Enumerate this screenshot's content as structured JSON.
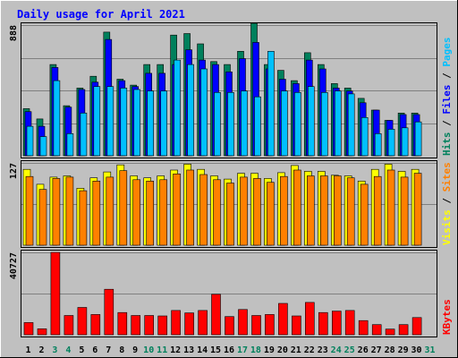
{
  "chart_data": {
    "type": "bar",
    "title": "Daily usage for April 2021",
    "categories": [
      "1",
      "2",
      "3",
      "4",
      "5",
      "6",
      "7",
      "8",
      "9",
      "10",
      "11",
      "12",
      "13",
      "14",
      "15",
      "16",
      "17",
      "18",
      "19",
      "20",
      "21",
      "22",
      "23",
      "24",
      "25",
      "26",
      "27",
      "28",
      "29",
      "30",
      "31"
    ],
    "weekend_days": [
      "3",
      "4",
      "10",
      "11",
      "17",
      "18",
      "24",
      "25",
      "31"
    ],
    "panels": [
      {
        "id": "hits",
        "max_label": "888",
        "ylim": [
          0,
          888
        ],
        "legend": [
          "Pages",
          "Files",
          "Hits"
        ],
        "series": [
          {
            "name": "Hits",
            "color": "#00805c",
            "values": [
              320,
              250,
              620,
              340,
              460,
              540,
              840,
              520,
              480,
              620,
              620,
              820,
              830,
              760,
              640,
              620,
              710,
              900,
              620,
              580,
              510,
              700,
              620,
              490,
              460,
              390,
              310,
              240,
              290,
              290,
              0
            ]
          },
          {
            "name": "Files",
            "color": "#0000ff",
            "values": [
              300,
              200,
              600,
              330,
              450,
              500,
              790,
              510,
              470,
              560,
              560,
              620,
              720,
              650,
              620,
              570,
              660,
              770,
              590,
              520,
              490,
              650,
              590,
              460,
              440,
              360,
              310,
              240,
              280,
              280,
              0
            ]
          },
          {
            "name": "Pages",
            "color": "#00c0ff",
            "values": [
              200,
              130,
              510,
              150,
              290,
              470,
              470,
              460,
              450,
              440,
              440,
              650,
              620,
              590,
              430,
              430,
              440,
              400,
              710,
              440,
              430,
              470,
              430,
              440,
              420,
              260,
              150,
              180,
              190,
              230,
              0
            ]
          }
        ]
      },
      {
        "id": "visits",
        "max_label": "127",
        "ylim": [
          0,
          127
        ],
        "legend": [
          "Sites",
          "Visits"
        ],
        "series": [
          {
            "name": "Visits",
            "color": "#ffff00",
            "values": [
              117,
              94,
              105,
              107,
              88,
              104,
              113,
              124,
              107,
              104,
              107,
              116,
              125,
              117,
              107,
              102,
              111,
              111,
              103,
              112,
              123,
              114,
              114,
              108,
              107,
              99,
              117,
              125,
              114,
              117,
              0
            ]
          },
          {
            "name": "Sites",
            "color": "#ff8000",
            "values": [
              106,
              86,
              103,
              105,
              84,
              99,
              105,
              115,
              101,
              99,
              101,
              110,
              116,
              109,
              101,
              96,
              105,
              103,
              97,
              106,
              116,
              107,
              107,
              107,
              104,
              94,
              106,
              116,
              105,
              111,
              0
            ]
          }
        ]
      },
      {
        "id": "kbytes",
        "max_label": "40727",
        "ylim": [
          0,
          40727
        ],
        "legend": [
          "KBytes"
        ],
        "series": [
          {
            "name": "KBytes",
            "color": "#ff0000",
            "values": [
              6000,
              2900,
              40727,
              9500,
              13500,
              10000,
              22500,
              11000,
              9500,
              9500,
              9300,
              12000,
              10800,
              12000,
              20000,
              9000,
              12500,
              9500,
              10000,
              15500,
              9300,
              16000,
              11000,
              11700,
              12000,
              7000,
              5000,
              2800,
              5000,
              8500,
              0
            ]
          }
        ]
      }
    ]
  }
}
